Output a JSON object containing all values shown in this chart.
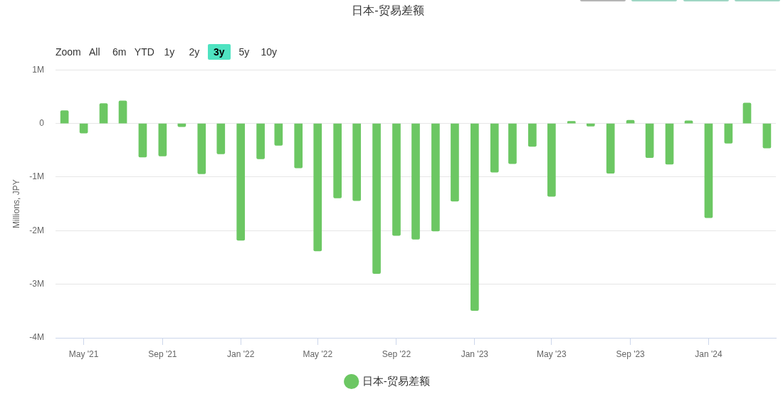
{
  "chart_data": {
    "type": "bar",
    "title": "日本-贸易差额",
    "ylabel": "Millions, JPY",
    "annotations": [
      "Zoom",
      "All",
      "6m",
      "YTD",
      "1y",
      "2y",
      "3y",
      "5y",
      "10y"
    ],
    "x": [
      "2021-04",
      "2021-05",
      "2021-06",
      "2021-07",
      "2021-08",
      "2021-09",
      "2021-10",
      "2021-11",
      "2021-12",
      "2022-01",
      "2022-02",
      "2022-03",
      "2022-04",
      "2022-05",
      "2022-06",
      "2022-07",
      "2022-08",
      "2022-09",
      "2022-10",
      "2022-11",
      "2022-12",
      "2023-01",
      "2023-02",
      "2023-03",
      "2023-04",
      "2023-05",
      "2023-06",
      "2023-07",
      "2023-08",
      "2023-09",
      "2023-10",
      "2023-11",
      "2023-12",
      "2024-01",
      "2024-02",
      "2024-03",
      "2024-04"
    ],
    "series": [
      {
        "name": "日本-贸易差额",
        "color": "#6cc763",
        "values": [
          240000,
          -180000,
          370000,
          420000,
          -630000,
          -610000,
          -60000,
          -940000,
          -570000,
          -2180000,
          -660000,
          -410000,
          -830000,
          -2380000,
          -1390000,
          -1440000,
          -2800000,
          -2090000,
          -2160000,
          -2010000,
          -1450000,
          -3490000,
          -910000,
          -750000,
          -430000,
          -1360000,
          40000,
          -50000,
          -930000,
          60000,
          -640000,
          -760000,
          50000,
          -1760000,
          -370000,
          380000,
          -460000
        ]
      }
    ],
    "xlim": [
      "2021-03-18",
      "2024-04-15"
    ],
    "xticks": [
      {
        "value": "2021-05",
        "label": "May '21"
      },
      {
        "value": "2021-09",
        "label": "Sep '21"
      },
      {
        "value": "2022-01",
        "label": "Jan '22"
      },
      {
        "value": "2022-05",
        "label": "May '22"
      },
      {
        "value": "2022-09",
        "label": "Sep '22"
      },
      {
        "value": "2023-01",
        "label": "Jan '23"
      },
      {
        "value": "2023-05",
        "label": "May '23"
      },
      {
        "value": "2023-09",
        "label": "Sep '23"
      },
      {
        "value": "2024-01",
        "label": "Jan '24"
      }
    ],
    "ylim": [
      -4000000,
      1000000
    ],
    "yticks": [
      {
        "value": 1000000,
        "label": "1M"
      },
      0,
      {
        "value": -1000000,
        "label": "-1M"
      },
      {
        "value": -2000000,
        "label": "-2M"
      },
      {
        "value": -3000000,
        "label": "-3M"
      },
      {
        "value": -4000000,
        "label": "-4M"
      }
    ],
    "grid": "y",
    "legend": "bottom"
  }
}
